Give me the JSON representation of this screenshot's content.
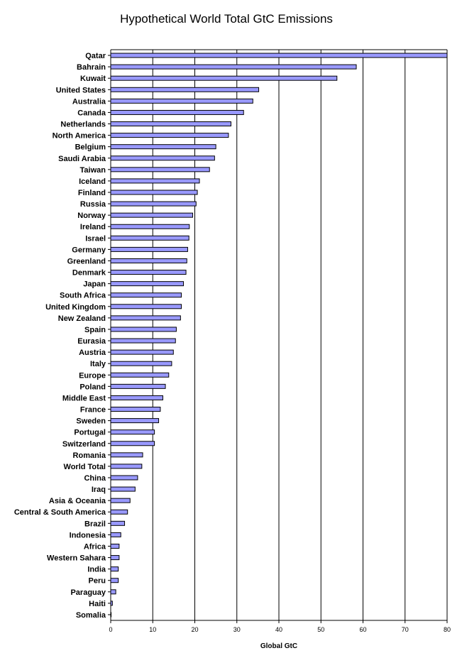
{
  "chart_data": {
    "type": "bar",
    "orientation": "horizontal",
    "title": "Hypothetical World Total GtC Emissions",
    "xlabel": "Global GtC",
    "ylabel": "",
    "xlim": [
      0,
      80
    ],
    "xticks": [
      0,
      10,
      20,
      30,
      40,
      50,
      60,
      70,
      80
    ],
    "grid": "vertical",
    "bar_color": "#9999ff",
    "categories": [
      "Qatar",
      "Bahrain",
      "Kuwait",
      "United States",
      "Australia",
      "Canada",
      "Netherlands",
      "North America",
      "Belgium",
      "Saudi Arabia",
      "Taiwan",
      "Iceland",
      "Finland",
      "Russia",
      "Norway",
      "Ireland",
      "Israel",
      "Germany",
      "Greenland",
      "Denmark",
      "Japan",
      "South Africa",
      "United Kingdom",
      "New Zealand",
      "Spain",
      "Eurasia",
      "Austria",
      "Italy",
      "Europe",
      "Poland",
      "Middle East",
      "France",
      "Sweden",
      "Portugal",
      "Switzerland",
      "Romania",
      "World Total",
      "China",
      "Iraq",
      "Asia & Oceania",
      "Central & South America",
      "Brazil",
      "Indonesia",
      "Africa",
      "Western Sahara",
      "India",
      "Peru",
      "Paraguay",
      "Haiti",
      "Somalia"
    ],
    "values": [
      80.2,
      58.4,
      53.8,
      35.2,
      33.8,
      31.6,
      28.6,
      28.0,
      25.0,
      24.7,
      23.5,
      21.1,
      20.6,
      20.3,
      19.5,
      18.7,
      18.6,
      18.3,
      18.1,
      17.9,
      17.3,
      16.8,
      16.8,
      16.6,
      15.6,
      15.4,
      14.9,
      14.5,
      13.8,
      13.0,
      12.4,
      11.8,
      11.4,
      10.4,
      10.4,
      7.6,
      7.4,
      6.4,
      5.8,
      4.6,
      4.0,
      3.3,
      2.4,
      2.0,
      2.0,
      1.8,
      1.8,
      1.2,
      0.4,
      0.1
    ]
  }
}
